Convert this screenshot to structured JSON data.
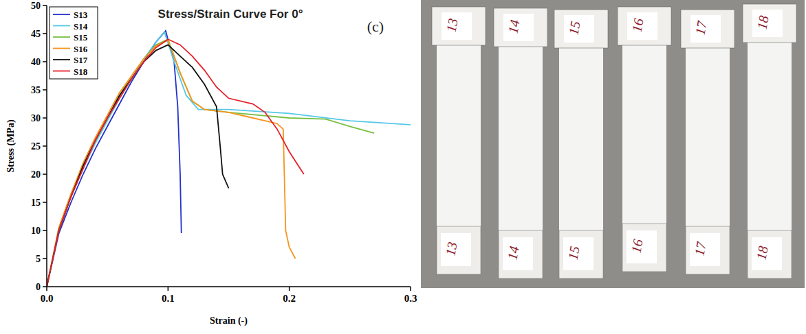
{
  "chart_data": {
    "type": "line",
    "title": "Stress/Strain Curve For 0°",
    "panel_label": "(c)",
    "x_label": "Strain (-)",
    "y_label": "Stress (MPa)",
    "xlim": [
      0,
      0.3
    ],
    "xticks": [
      {
        "value": 0,
        "label": "0.0"
      },
      {
        "value": 0.1,
        "label": "0.1"
      },
      {
        "value": 0.2,
        "label": "0.2"
      },
      {
        "value": 0.3,
        "label": "0.3"
      }
    ],
    "ylim": [
      0,
      50
    ],
    "yticks": [
      0,
      5,
      10,
      15,
      20,
      25,
      30,
      35,
      40,
      45,
      50
    ],
    "legend": "upper left",
    "grid": false,
    "series": [
      {
        "name": "S13",
        "color": "#2233cc",
        "x": [
          0,
          0.01,
          0.02,
          0.03,
          0.04,
          0.05,
          0.06,
          0.07,
          0.08,
          0.09,
          0.098,
          0.105,
          0.108,
          0.11,
          0.111
        ],
        "values": [
          0,
          9.5,
          15,
          20,
          24.5,
          28.5,
          32.5,
          36.5,
          40,
          43.5,
          45.5,
          40,
          32,
          20,
          9.5
        ]
      },
      {
        "name": "S14",
        "color": "#55c8e6",
        "x": [
          0,
          0.01,
          0.02,
          0.03,
          0.04,
          0.05,
          0.06,
          0.07,
          0.08,
          0.09,
          0.097,
          0.105,
          0.115,
          0.125,
          0.15,
          0.2,
          0.25,
          0.3
        ],
        "values": [
          0,
          10,
          16,
          21,
          25.5,
          29.5,
          33.5,
          37,
          40.5,
          43.5,
          45.3,
          40,
          34,
          31.5,
          31.5,
          30.8,
          29.5,
          28.8
        ]
      },
      {
        "name": "S15",
        "color": "#77c043",
        "x": [
          0,
          0.01,
          0.02,
          0.03,
          0.04,
          0.05,
          0.06,
          0.07,
          0.08,
          0.09,
          0.1,
          0.11,
          0.12,
          0.13,
          0.15,
          0.2,
          0.23,
          0.25,
          0.27
        ],
        "values": [
          0,
          10.5,
          16.5,
          21.5,
          26,
          30,
          34,
          37.5,
          40.5,
          43,
          44,
          38,
          33,
          31.5,
          31,
          30,
          29.8,
          28.5,
          27.3
        ]
      },
      {
        "name": "S16",
        "color": "#f7941d",
        "x": [
          0,
          0.01,
          0.02,
          0.03,
          0.04,
          0.05,
          0.06,
          0.07,
          0.08,
          0.09,
          0.1,
          0.11,
          0.12,
          0.13,
          0.15,
          0.17,
          0.19,
          0.195,
          0.197,
          0.2,
          0.205
        ],
        "values": [
          0,
          10.5,
          16.5,
          22,
          26.5,
          30.5,
          34.5,
          37.5,
          40.5,
          42.8,
          43.8,
          38,
          33,
          31.5,
          31,
          30,
          29,
          28,
          10,
          7,
          5
        ]
      },
      {
        "name": "S17",
        "color": "#111111",
        "x": [
          0,
          0.01,
          0.02,
          0.03,
          0.04,
          0.05,
          0.06,
          0.07,
          0.08,
          0.09,
          0.1,
          0.11,
          0.12,
          0.13,
          0.14,
          0.143,
          0.145,
          0.15
        ],
        "values": [
          0,
          10,
          16,
          21.5,
          26,
          30,
          34,
          37,
          40,
          42,
          43,
          41,
          39,
          36,
          32,
          25,
          20,
          17.5
        ]
      },
      {
        "name": "S18",
        "color": "#e8202a",
        "x": [
          0,
          0.01,
          0.02,
          0.03,
          0.04,
          0.05,
          0.06,
          0.07,
          0.08,
          0.09,
          0.1,
          0.11,
          0.12,
          0.13,
          0.14,
          0.15,
          0.17,
          0.18,
          0.19,
          0.2,
          0.212
        ],
        "values": [
          0,
          10,
          16,
          21,
          26,
          30,
          33.5,
          37,
          40,
          42.5,
          44,
          43,
          41,
          38.5,
          35.5,
          33.5,
          32.5,
          31,
          28,
          24,
          20
        ]
      }
    ]
  },
  "photo": {
    "labels": [
      "13",
      "14",
      "15",
      "16",
      "17",
      "18"
    ]
  }
}
